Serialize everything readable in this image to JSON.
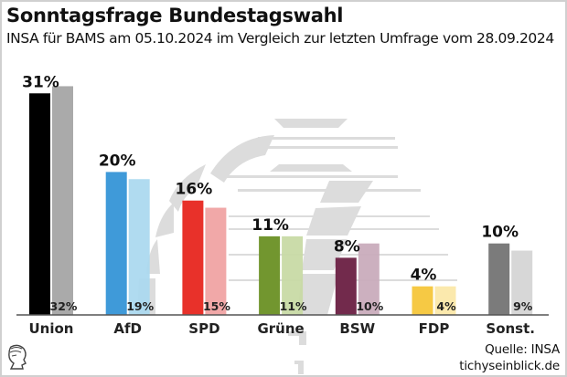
{
  "header": {
    "title": "Sonntagsfrage Bundestagswahl",
    "subtitle": "INSA für BAMS am 05.10.2024 im Vergleich zur letzten Umfrage vom 28.09.2024"
  },
  "footer": {
    "source": "Quelle: INSA",
    "site": "tichyseinblick.de"
  },
  "logo_icon": "tichys-einblick-head-logo",
  "chart_data": {
    "type": "bar",
    "title": "Sonntagsfrage Bundestagswahl",
    "subtitle": "INSA für BAMS am 05.10.2024 im Vergleich zur letzten Umfrage vom 28.09.2024",
    "xlabel": "",
    "ylabel": "",
    "ylim": [
      0,
      32
    ],
    "grid": false,
    "legend": "none",
    "categories": [
      "Union",
      "AfD",
      "SPD",
      "Grüne",
      "BSW",
      "FDP",
      "Sonst."
    ],
    "series": [
      {
        "name": "05.10.2024",
        "values": [
          31,
          20,
          16,
          11,
          8,
          4,
          10
        ],
        "labels": [
          "31%",
          "20%",
          "16%",
          "11%",
          "8%",
          "4%",
          "10%"
        ],
        "colors": [
          "#000000",
          "#3f9ad9",
          "#e8312a",
          "#72962f",
          "#722a4c",
          "#f6c944",
          "#7b7b7b"
        ]
      },
      {
        "name": "28.09.2024",
        "values": [
          32,
          19,
          15,
          11,
          10,
          4,
          9
        ],
        "labels": [
          "32%",
          "19%",
          "15%",
          "11%",
          "10%",
          "4%",
          "9%"
        ],
        "colors": [
          "#a3a3a3",
          "#a9d8ef",
          "#f0a1a1",
          "#c7d9a3",
          "#c8a9ba",
          "#fbe7a6",
          "#d4d4d4"
        ]
      }
    ]
  }
}
